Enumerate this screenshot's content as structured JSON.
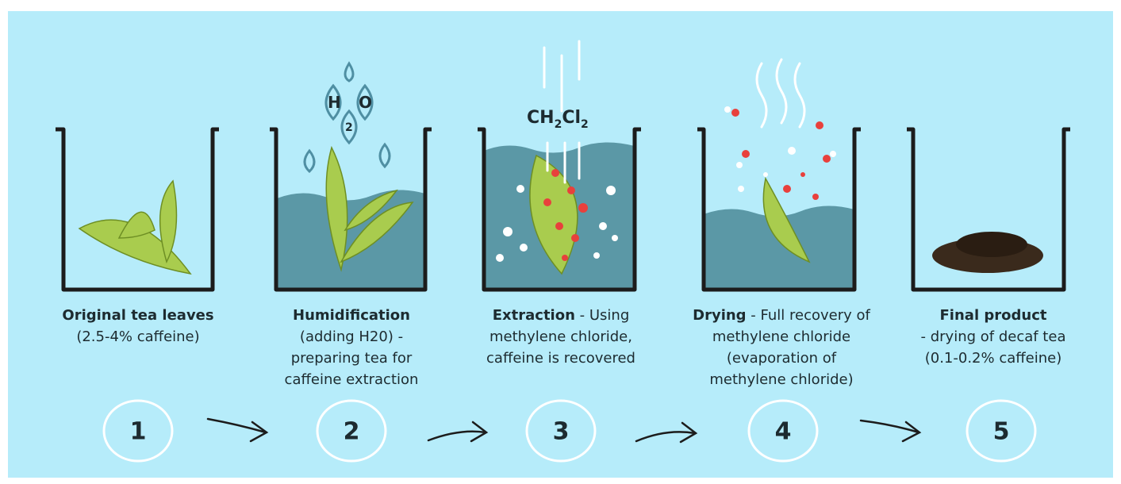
{
  "formulas": {
    "water": [
      "H",
      "2",
      "O"
    ],
    "solvent": [
      "CH",
      "2",
      "Cl",
      "2"
    ]
  },
  "steps": [
    {
      "number": "1",
      "title": "Original tea leaves",
      "description": "(2.5-4% caffeine)"
    },
    {
      "number": "2",
      "title": "Humidification",
      "description": "(adding H20) - preparing tea for caffeine extraction"
    },
    {
      "number": "3",
      "title": "Extraction",
      "description": "- Using methylene chloride, caffeine is recovered"
    },
    {
      "number": "4",
      "title": "Drying",
      "description": "- Full recovery of methylene chloride (evaporation of methylene chloride)"
    },
    {
      "number": "5",
      "title": "Final product",
      "description": "- drying of decaf tea (0.1-0.2% caffeine)"
    }
  ]
}
